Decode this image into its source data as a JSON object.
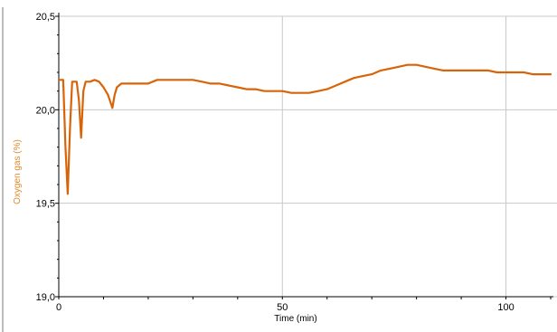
{
  "chart_data": {
    "type": "line",
    "xlabel": "Time (min)",
    "ylabel": "Oxygen gas (%)",
    "xlim": [
      0,
      110
    ],
    "ylim": [
      19.0,
      20.5
    ],
    "x_ticks": [
      0,
      50,
      100
    ],
    "x_tick_labels": [
      "0",
      "50",
      "100"
    ],
    "y_ticks": [
      19.0,
      19.5,
      20.0,
      20.5
    ],
    "y_tick_labels": [
      "19,0",
      "19,5",
      "20,0",
      "20,5"
    ],
    "grid": true,
    "colors": {
      "line": "#d8640a",
      "ylabel": "#e08a2c",
      "grid": "#c8c8c8",
      "axis": "#000000"
    },
    "series": [
      {
        "x": [
          0,
          1,
          1.5,
          2,
          2.5,
          3,
          4,
          4.5,
          5,
          5.5,
          6,
          7,
          8,
          9,
          10,
          11,
          12,
          12.5,
          13,
          14,
          16,
          18,
          20,
          22,
          24,
          26,
          28,
          30,
          32,
          34,
          36,
          38,
          40,
          42,
          44,
          46,
          48,
          50,
          52,
          54,
          56,
          58,
          60,
          62,
          64,
          66,
          68,
          70,
          72,
          74,
          76,
          78,
          80,
          82,
          84,
          86,
          88,
          90,
          92,
          94,
          96,
          98,
          100,
          102,
          104,
          106,
          108,
          110
        ],
        "y": [
          20.16,
          20.16,
          19.8,
          19.55,
          19.9,
          20.15,
          20.15,
          20.05,
          19.85,
          20.1,
          20.15,
          20.15,
          20.16,
          20.15,
          20.12,
          20.08,
          20.01,
          20.08,
          20.12,
          20.14,
          20.14,
          20.14,
          20.14,
          20.16,
          20.16,
          20.16,
          20.16,
          20.16,
          20.15,
          20.14,
          20.14,
          20.13,
          20.12,
          20.11,
          20.11,
          20.1,
          20.1,
          20.1,
          20.09,
          20.09,
          20.09,
          20.1,
          20.11,
          20.13,
          20.15,
          20.17,
          20.18,
          20.19,
          20.21,
          20.22,
          20.23,
          20.24,
          20.24,
          20.23,
          20.22,
          20.21,
          20.21,
          20.21,
          20.21,
          20.21,
          20.21,
          20.2,
          20.2,
          20.2,
          20.2,
          20.19,
          20.19,
          20.19
        ]
      }
    ]
  }
}
